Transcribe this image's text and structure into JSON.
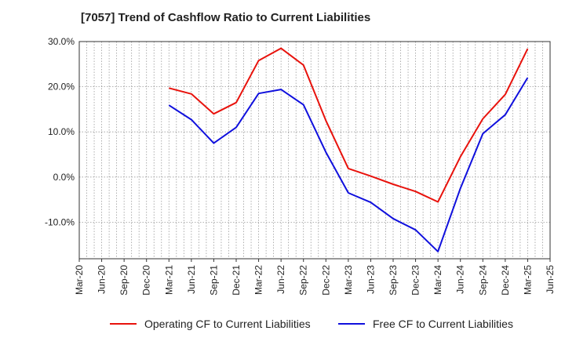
{
  "chart_data": {
    "type": "line",
    "title": "[7057]  Trend of Cashflow Ratio to Current Liabilities",
    "y_ticks": [
      "30.0%",
      "20.0%",
      "10.0%",
      "0.0%",
      "-10.0%"
    ],
    "ylim": [
      -18,
      30
    ],
    "x_tick_labels": [
      "Mar-20",
      "Jun-20",
      "Sep-20",
      "Dec-20",
      "Mar-21",
      "Jun-21",
      "Sep-21",
      "Dec-21",
      "Mar-22",
      "Jun-22",
      "Sep-22",
      "Dec-22",
      "Mar-23",
      "Jun-23",
      "Sep-23",
      "Dec-23",
      "Mar-24",
      "Jun-24",
      "Sep-24",
      "Dec-24",
      "Mar-25",
      "Jun-25"
    ],
    "grid": true,
    "legend_position": "bottom",
    "categories": [
      "Mar-21",
      "Jun-21",
      "Sep-21",
      "Dec-21",
      "Mar-22",
      "Jun-22",
      "Sep-22",
      "Dec-22",
      "Mar-23",
      "Jun-23",
      "Sep-23",
      "Dec-23",
      "Mar-24",
      "Jun-24",
      "Sep-24",
      "Dec-24",
      "Mar-25"
    ],
    "series": [
      {
        "name": "Operating CF to Current Liabilities",
        "color": "#e8120c",
        "values": [
          19.7,
          18.4,
          14.0,
          16.5,
          25.8,
          28.5,
          24.8,
          12.5,
          1.9,
          0.2,
          -1.6,
          -3.2,
          -5.5,
          4.5,
          12.9,
          18.3,
          28.4
        ]
      },
      {
        "name": "Free CF to Current Liabilities",
        "color": "#1010dd",
        "values": [
          15.9,
          12.7,
          7.5,
          11.0,
          18.5,
          19.4,
          16.0,
          5.5,
          -3.5,
          -5.6,
          -9.2,
          -11.7,
          -16.5,
          -2.5,
          9.6,
          13.8,
          22.0
        ]
      }
    ]
  }
}
